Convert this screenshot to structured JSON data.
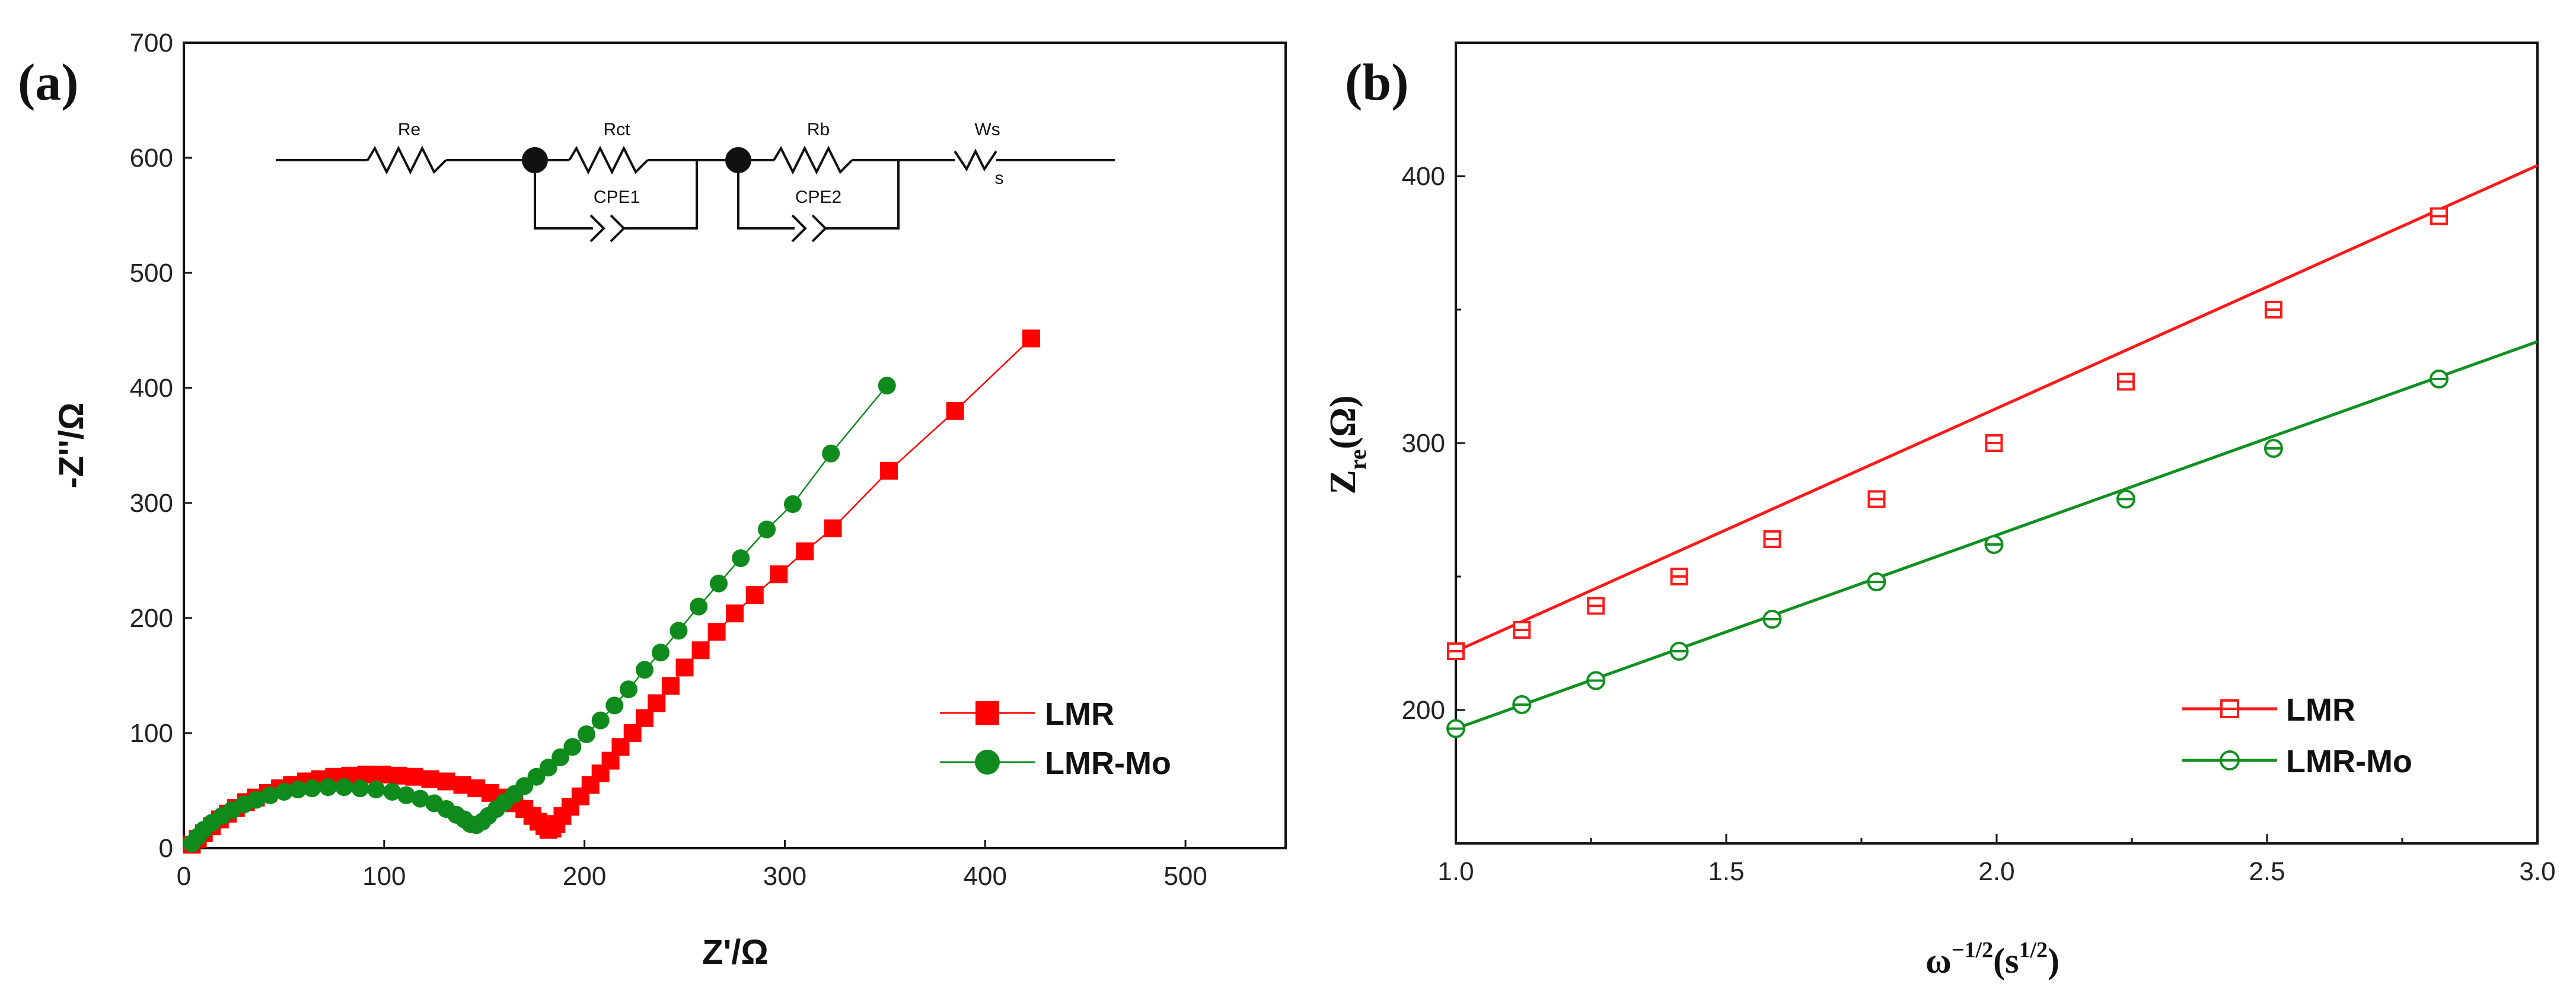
{
  "chart_data": [
    {
      "type": "scatter",
      "panel_label": "(a)",
      "xlabel": "Z'/Ω",
      "ylabel": "-Z''/Ω",
      "xlim": [
        0,
        550
      ],
      "ylim": [
        0,
        700
      ],
      "xticks": [
        0,
        100,
        200,
        300,
        400,
        500
      ],
      "yticks": [
        0,
        100,
        200,
        300,
        400,
        500,
        600,
        700
      ],
      "legend_position": "bottom-right",
      "circuit": {
        "labels": [
          "Re",
          "Rct",
          "Rb",
          "Ws",
          "CPE1",
          "CPE2"
        ],
        "ws_subscript": "s"
      },
      "series": [
        {
          "name": "LMR",
          "color": "#ff0000",
          "marker": "square",
          "x": [
            4,
            7,
            10,
            14,
            18,
            22,
            26,
            31,
            36,
            42,
            48,
            54,
            61,
            68,
            75,
            83,
            91,
            99,
            107,
            115,
            123,
            131,
            139,
            146,
            153,
            159,
            165,
            170,
            174,
            177,
            180,
            182,
            184,
            186,
            189,
            193,
            198,
            203,
            208,
            213,
            218,
            224,
            230,
            236,
            243,
            250,
            258,
            266,
            275,
            285,
            297,
            310,
            324,
            352,
            385,
            423
          ],
          "y": [
            3,
            8,
            13,
            19,
            25,
            30,
            35,
            40,
            44,
            48,
            52,
            55,
            58,
            60,
            62,
            63,
            64,
            64,
            63,
            62,
            60,
            58,
            55,
            52,
            48,
            44,
            39,
            34,
            28,
            23,
            19,
            16,
            17,
            21,
            28,
            36,
            45,
            55,
            65,
            76,
            88,
            100,
            113,
            126,
            141,
            157,
            172,
            188,
            204,
            220,
            238,
            258,
            278,
            328,
            380,
            443
          ]
        },
        {
          "name": "LMR-Mo",
          "color": "#0f8a1d",
          "marker": "circle",
          "x": [
            4,
            7,
            10,
            14,
            19,
            24,
            30,
            36,
            43,
            50,
            57,
            64,
            72,
            80,
            88,
            96,
            104,
            111,
            118,
            125,
            131,
            136,
            140,
            143,
            146,
            149,
            152,
            156,
            160,
            165,
            170,
            176,
            182,
            188,
            194,
            201,
            208,
            215,
            222,
            230,
            238,
            247,
            257,
            267,
            278,
            291,
            304,
            323,
            351
          ],
          "y": [
            4,
            10,
            16,
            22,
            28,
            33,
            38,
            42,
            46,
            49,
            51,
            52,
            53,
            53,
            52,
            51,
            49,
            46,
            43,
            39,
            34,
            29,
            25,
            21,
            20,
            23,
            28,
            34,
            40,
            47,
            54,
            62,
            70,
            79,
            88,
            99,
            111,
            124,
            138,
            155,
            170,
            189,
            210,
            230,
            252,
            277,
            299,
            343,
            402
          ]
        }
      ]
    },
    {
      "type": "line",
      "panel_label": "(b)",
      "xlabel": "ω^(-1/2)(s^(1/2))",
      "ylabel": "Z_re(Ω)",
      "xlim": [
        1.0,
        3.0
      ],
      "ylim": [
        150,
        450
      ],
      "xticks": [
        "1.0",
        "1.5",
        "2.0",
        "2.5",
        "3.0"
      ],
      "yticks": [
        "200",
        "300",
        "400"
      ],
      "legend_position": "bottom-right",
      "series": [
        {
          "name": "LMR",
          "color": "#ff1a1a",
          "marker": "square-open",
          "x": [
            1.0,
            1.122,
            1.259,
            1.413,
            1.585,
            1.778,
            1.995,
            2.239,
            2.512,
            2.818
          ],
          "y": [
            222,
            230,
            239,
            250,
            264,
            279,
            300,
            323,
            350,
            385
          ],
          "fit": {
            "x": [
              1.0,
              3.0
            ],
            "y": [
              222,
              404
            ]
          }
        },
        {
          "name": "LMR-Mo",
          "color": "#109020",
          "marker": "circle-open",
          "x": [
            1.0,
            1.122,
            1.259,
            1.413,
            1.585,
            1.778,
            1.995,
            2.239,
            2.512,
            2.818
          ],
          "y": [
            193,
            202,
            211,
            222,
            234,
            248,
            262,
            279,
            298,
            324
          ],
          "fit": {
            "x": [
              1.0,
              3.0
            ],
            "y": [
              193,
              338
            ]
          }
        }
      ]
    }
  ]
}
